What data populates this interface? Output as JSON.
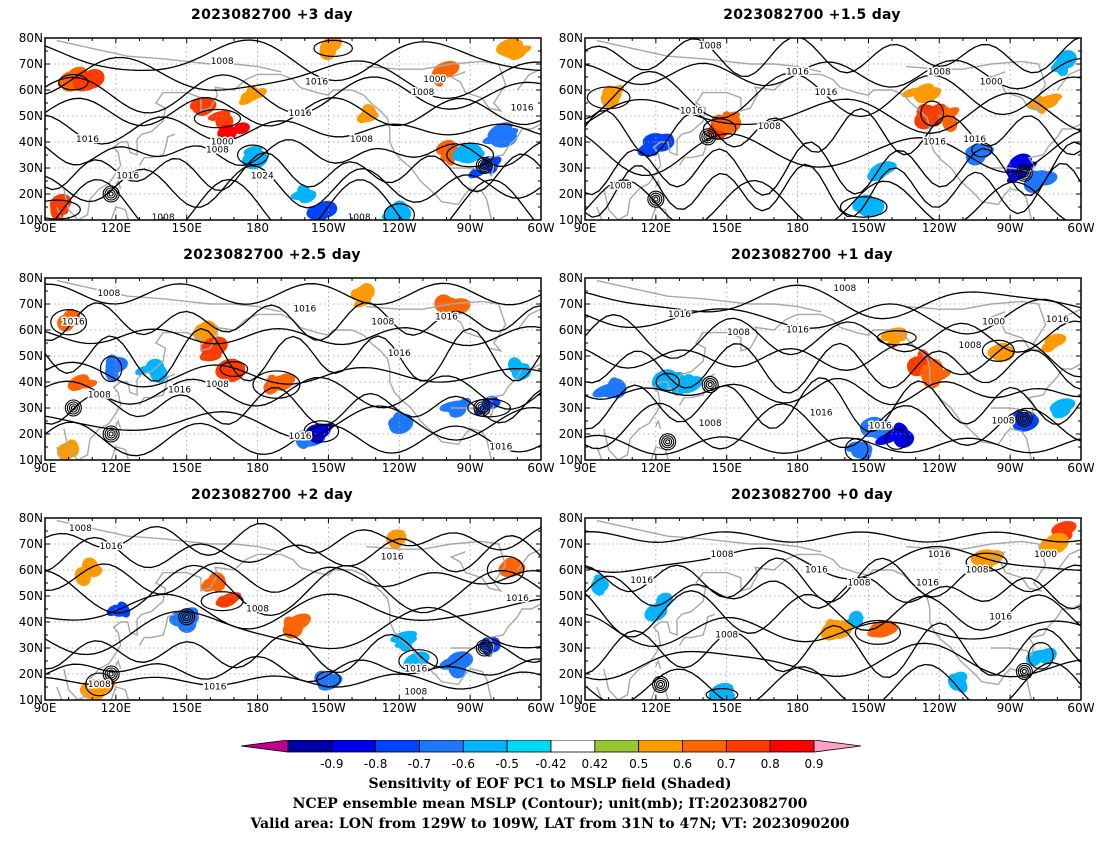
{
  "chart_data": [
    {
      "type": "heatmap",
      "title": "2023082700 +3 day",
      "x_ticks": [
        "90E",
        "120E",
        "150E",
        "180",
        "150W",
        "120W",
        "90W",
        "60W"
      ],
      "y_ticks": [
        "80N",
        "70N",
        "60N",
        "50N",
        "40N",
        "30N",
        "20N",
        "10N"
      ],
      "contour_labels": [
        {
          "text": "1008",
          "lon": 165,
          "lat": 71
        },
        {
          "text": "1016",
          "lon": 205,
          "lat": 63
        },
        {
          "text": "1000",
          "lon": 255,
          "lat": 64
        },
        {
          "text": "1008",
          "lon": 250,
          "lat": 59
        },
        {
          "text": "1016",
          "lon": 108,
          "lat": 41
        },
        {
          "text": "1000",
          "lon": 165,
          "lat": 40
        },
        {
          "text": "1008",
          "lon": 163,
          "lat": 37
        },
        {
          "text": "1016",
          "lon": 198,
          "lat": 51
        },
        {
          "text": "1016",
          "lon": 125,
          "lat": 27
        },
        {
          "text": "1008",
          "lon": 224,
          "lat": 41
        },
        {
          "text": "1024",
          "lon": 182,
          "lat": 27
        },
        {
          "text": "1008",
          "lon": 140,
          "lat": 11
        },
        {
          "text": "1008",
          "lon": 223,
          "lat": 11
        },
        {
          "text": "1016",
          "lon": 292,
          "lat": 53
        }
      ],
      "shaded": [
        {
          "lon": 102,
          "lat": 63,
          "v": 0.6
        },
        {
          "lon": 108,
          "lat": 63,
          "v": 0.7
        },
        {
          "lon": 155,
          "lat": 53,
          "v": 0.7
        },
        {
          "lon": 163,
          "lat": 49,
          "v": 0.7
        },
        {
          "lon": 170,
          "lat": 45,
          "v": 0.8
        },
        {
          "lon": 178,
          "lat": 58,
          "v": 0.5
        },
        {
          "lon": 212,
          "lat": 76,
          "v": 0.5
        },
        {
          "lon": 258,
          "lat": 66,
          "v": 0.6
        },
        {
          "lon": 290,
          "lat": 76,
          "v": 0.5
        },
        {
          "lon": 95,
          "lat": 14,
          "v": 0.7
        },
        {
          "lon": 260,
          "lat": 36,
          "v": 0.6
        },
        {
          "lon": 225,
          "lat": 49,
          "v": 0.5
        },
        {
          "lon": 178,
          "lat": 35,
          "v": -0.5
        },
        {
          "lon": 198,
          "lat": 18,
          "v": -0.5
        },
        {
          "lon": 208,
          "lat": 13,
          "v": -0.7
        },
        {
          "lon": 270,
          "lat": 35,
          "v": -0.5
        },
        {
          "lon": 282,
          "lat": 42,
          "v": -0.6
        },
        {
          "lon": 276,
          "lat": 30,
          "v": -0.7
        },
        {
          "lon": 240,
          "lat": 12,
          "v": -0.5
        }
      ],
      "lows": [
        {
          "lon": 276,
          "lat": 31
        },
        {
          "lon": 118,
          "lat": 20
        }
      ]
    },
    {
      "type": "heatmap",
      "title": "2023082700 +1.5 day",
      "x_ticks": [
        "90E",
        "120E",
        "150E",
        "180",
        "150W",
        "120W",
        "90W",
        "60W"
      ],
      "y_ticks": [
        "80N",
        "70N",
        "60N",
        "50N",
        "40N",
        "30N",
        "20N",
        "10N"
      ],
      "contour_labels": [
        {
          "text": "1008",
          "lon": 143,
          "lat": 77
        },
        {
          "text": "1016",
          "lon": 180,
          "lat": 67
        },
        {
          "text": "1008",
          "lon": 240,
          "lat": 67
        },
        {
          "text": "1000",
          "lon": 262,
          "lat": 63
        },
        {
          "text": "1016",
          "lon": 192,
          "lat": 59
        },
        {
          "text": "1016",
          "lon": 135,
          "lat": 52
        },
        {
          "text": "1008",
          "lon": 168,
          "lat": 46
        },
        {
          "text": "1016",
          "lon": 238,
          "lat": 40
        },
        {
          "text": "1016",
          "lon": 255,
          "lat": 41
        },
        {
          "text": "1008",
          "lon": 105,
          "lat": 23
        }
      ],
      "shaded": [
        {
          "lon": 147,
          "lat": 45,
          "v": 0.7
        },
        {
          "lon": 150,
          "lat": 48,
          "v": 0.6
        },
        {
          "lon": 232,
          "lat": 58,
          "v": 0.5
        },
        {
          "lon": 237,
          "lat": 51,
          "v": 0.7
        },
        {
          "lon": 244,
          "lat": 49,
          "v": 0.6
        },
        {
          "lon": 285,
          "lat": 56,
          "v": 0.5
        },
        {
          "lon": 100,
          "lat": 57,
          "v": 0.5
        },
        {
          "lon": 292,
          "lat": 69,
          "v": -0.5
        },
        {
          "lon": 120,
          "lat": 40,
          "v": -0.7
        },
        {
          "lon": 258,
          "lat": 37,
          "v": -0.6
        },
        {
          "lon": 275,
          "lat": 30,
          "v": -0.8
        },
        {
          "lon": 282,
          "lat": 26,
          "v": -0.6
        },
        {
          "lon": 208,
          "lat": 15,
          "v": -0.5
        },
        {
          "lon": 217,
          "lat": 28,
          "v": -0.5
        }
      ],
      "lows": [
        {
          "lon": 276,
          "lat": 28
        },
        {
          "lon": 142,
          "lat": 42
        },
        {
          "lon": 120,
          "lat": 18
        }
      ]
    },
    {
      "type": "heatmap",
      "title": "2023082700 +2.5 day",
      "x_ticks": [
        "90E",
        "120E",
        "150E",
        "180",
        "150W",
        "120W",
        "90W",
        "60W"
      ],
      "y_ticks": [
        "80N",
        "70N",
        "60N",
        "50N",
        "40N",
        "30N",
        "20N",
        "10N"
      ],
      "contour_labels": [
        {
          "text": "1008",
          "lon": 117,
          "lat": 74
        },
        {
          "text": "1016",
          "lon": 102,
          "lat": 63
        },
        {
          "text": "1016",
          "lon": 200,
          "lat": 68
        },
        {
          "text": "1008",
          "lon": 233,
          "lat": 63
        },
        {
          "text": "1016",
          "lon": 260,
          "lat": 65
        },
        {
          "text": "1016",
          "lon": 240,
          "lat": 51
        },
        {
          "text": "1008",
          "lon": 163,
          "lat": 39
        },
        {
          "text": "1016",
          "lon": 147,
          "lat": 37
        },
        {
          "text": "1008",
          "lon": 113,
          "lat": 35
        },
        {
          "text": "1016",
          "lon": 198,
          "lat": 19
        },
        {
          "text": "1016",
          "lon": 283,
          "lat": 15
        }
      ],
      "shaded": [
        {
          "lon": 100,
          "lat": 63,
          "v": 0.6
        },
        {
          "lon": 158,
          "lat": 58,
          "v": 0.5
        },
        {
          "lon": 163,
          "lat": 52,
          "v": 0.7
        },
        {
          "lon": 170,
          "lat": 45,
          "v": 0.7
        },
        {
          "lon": 225,
          "lat": 73,
          "v": 0.5
        },
        {
          "lon": 105,
          "lat": 40,
          "v": 0.6
        },
        {
          "lon": 188,
          "lat": 39,
          "v": 0.6
        },
        {
          "lon": 100,
          "lat": 14,
          "v": 0.5
        },
        {
          "lon": 262,
          "lat": 70,
          "v": 0.6
        },
        {
          "lon": 118,
          "lat": 45,
          "v": -0.6
        },
        {
          "lon": 135,
          "lat": 44,
          "v": -0.5
        },
        {
          "lon": 200,
          "lat": 18,
          "v": -0.6
        },
        {
          "lon": 207,
          "lat": 21,
          "v": -0.8
        },
        {
          "lon": 240,
          "lat": 25,
          "v": -0.6
        },
        {
          "lon": 265,
          "lat": 30,
          "v": -0.6
        },
        {
          "lon": 278,
          "lat": 30,
          "v": -0.7
        },
        {
          "lon": 290,
          "lat": 45,
          "v": -0.5
        }
      ],
      "lows": [
        {
          "lon": 275,
          "lat": 30
        },
        {
          "lon": 118,
          "lat": 20
        },
        {
          "lon": 102,
          "lat": 30
        }
      ]
    },
    {
      "type": "heatmap",
      "title": "2023082700 +1 day",
      "x_ticks": [
        "90E",
        "120E",
        "150E",
        "180",
        "150W",
        "120W",
        "90W",
        "60W"
      ],
      "y_ticks": [
        "80N",
        "70N",
        "60N",
        "50N",
        "40N",
        "30N",
        "20N",
        "10N"
      ],
      "contour_labels": [
        {
          "text": "1008",
          "lon": 200,
          "lat": 76
        },
        {
          "text": "1016",
          "lon": 130,
          "lat": 66
        },
        {
          "text": "1008",
          "lon": 155,
          "lat": 59
        },
        {
          "text": "1016",
          "lon": 180,
          "lat": 60
        },
        {
          "text": "1000",
          "lon": 263,
          "lat": 63
        },
        {
          "text": "1016",
          "lon": 290,
          "lat": 64
        },
        {
          "text": "1008",
          "lon": 253,
          "lat": 54
        },
        {
          "text": "1016",
          "lon": 190,
          "lat": 28
        },
        {
          "text": "1016",
          "lon": 215,
          "lat": 23
        },
        {
          "text": "1008",
          "lon": 143,
          "lat": 24
        },
        {
          "text": "1008",
          "lon": 267,
          "lat": 25
        }
      ],
      "shaded": [
        {
          "lon": 222,
          "lat": 57,
          "v": 0.5
        },
        {
          "lon": 232,
          "lat": 47,
          "v": 0.7
        },
        {
          "lon": 237,
          "lat": 43,
          "v": 0.6
        },
        {
          "lon": 265,
          "lat": 52,
          "v": 0.5
        },
        {
          "lon": 288,
          "lat": 54,
          "v": 0.5
        },
        {
          "lon": 100,
          "lat": 38,
          "v": -0.6
        },
        {
          "lon": 125,
          "lat": 40,
          "v": -0.5
        },
        {
          "lon": 132,
          "lat": 38,
          "v": -0.5
        },
        {
          "lon": 213,
          "lat": 22,
          "v": -0.6
        },
        {
          "lon": 222,
          "lat": 18,
          "v": -0.8
        },
        {
          "lon": 276,
          "lat": 26,
          "v": -0.7
        },
        {
          "lon": 290,
          "lat": 29,
          "v": -0.5
        },
        {
          "lon": 205,
          "lat": 14,
          "v": -0.6
        }
      ],
      "lows": [
        {
          "lon": 276,
          "lat": 26
        },
        {
          "lon": 143,
          "lat": 39
        },
        {
          "lon": 125,
          "lat": 17
        }
      ]
    },
    {
      "type": "heatmap",
      "title": "2023082700 +2 day",
      "x_ticks": [
        "90E",
        "120E",
        "150E",
        "180",
        "150W",
        "120W",
        "90W",
        "60W"
      ],
      "y_ticks": [
        "80N",
        "70N",
        "60N",
        "50N",
        "40N",
        "30N",
        "20N",
        "10N"
      ],
      "contour_labels": [
        {
          "text": "1008",
          "lon": 105,
          "lat": 76
        },
        {
          "text": "1016",
          "lon": 118,
          "lat": 69
        },
        {
          "text": "1016",
          "lon": 237,
          "lat": 65
        },
        {
          "text": "1008",
          "lon": 180,
          "lat": 45
        },
        {
          "text": "1016",
          "lon": 162,
          "lat": 15
        },
        {
          "text": "1008",
          "lon": 113,
          "lat": 16
        },
        {
          "text": "1008",
          "lon": 247,
          "lat": 13
        },
        {
          "text": "1016",
          "lon": 290,
          "lat": 49
        },
        {
          "text": "1016",
          "lon": 247,
          "lat": 22
        }
      ],
      "shaded": [
        {
          "lon": 165,
          "lat": 48,
          "v": 0.7
        },
        {
          "lon": 160,
          "lat": 53,
          "v": 0.6
        },
        {
          "lon": 240,
          "lat": 73,
          "v": 0.5
        },
        {
          "lon": 285,
          "lat": 60,
          "v": 0.6
        },
        {
          "lon": 195,
          "lat": 39,
          "v": 0.6
        },
        {
          "lon": 108,
          "lat": 60,
          "v": 0.5
        },
        {
          "lon": 113,
          "lat": 16,
          "v": 0.5
        },
        {
          "lon": 122,
          "lat": 44,
          "v": -0.7
        },
        {
          "lon": 150,
          "lat": 41,
          "v": -0.6
        },
        {
          "lon": 210,
          "lat": 18,
          "v": -0.6
        },
        {
          "lon": 278,
          "lat": 30,
          "v": -0.7
        },
        {
          "lon": 265,
          "lat": 24,
          "v": -0.6
        },
        {
          "lon": 248,
          "lat": 25,
          "v": -0.5
        },
        {
          "lon": 240,
          "lat": 33,
          "v": -0.5
        }
      ],
      "lows": [
        {
          "lon": 276,
          "lat": 30
        },
        {
          "lon": 118,
          "lat": 20
        },
        {
          "lon": 150,
          "lat": 42
        }
      ]
    },
    {
      "type": "heatmap",
      "title": "2023082700 +0 day",
      "x_ticks": [
        "90E",
        "120E",
        "150E",
        "180",
        "150W",
        "120W",
        "90W",
        "60W"
      ],
      "y_ticks": [
        "80N",
        "70N",
        "60N",
        "50N",
        "40N",
        "30N",
        "20N",
        "10N"
      ],
      "contour_labels": [
        {
          "text": "1008",
          "lon": 148,
          "lat": 66
        },
        {
          "text": "1016",
          "lon": 240,
          "lat": 66
        },
        {
          "text": "1000",
          "lon": 285,
          "lat": 66
        },
        {
          "text": "1016",
          "lon": 188,
          "lat": 60
        },
        {
          "text": "1008",
          "lon": 206,
          "lat": 55
        },
        {
          "text": "1008",
          "lon": 256,
          "lat": 60
        },
        {
          "text": "1016",
          "lon": 114,
          "lat": 56
        },
        {
          "text": "1016",
          "lon": 235,
          "lat": 55
        },
        {
          "text": "1016",
          "lon": 266,
          "lat": 42
        },
        {
          "text": "1008",
          "lon": 150,
          "lat": 35
        }
      ],
      "shaded": [
        {
          "lon": 214,
          "lat": 36,
          "v": 0.6
        },
        {
          "lon": 292,
          "lat": 74,
          "v": 0.7
        },
        {
          "lon": 287,
          "lat": 70,
          "v": 0.5
        },
        {
          "lon": 260,
          "lat": 63,
          "v": 0.5
        },
        {
          "lon": 122,
          "lat": 46,
          "v": -0.5
        },
        {
          "lon": 95,
          "lat": 54,
          "v": -0.5
        },
        {
          "lon": 148,
          "lat": 12,
          "v": -0.5
        },
        {
          "lon": 205,
          "lat": 40,
          "v": -0.5
        },
        {
          "lon": 195,
          "lat": 38,
          "v": 0.5
        },
        {
          "lon": 283,
          "lat": 27,
          "v": -0.5
        },
        {
          "lon": 250,
          "lat": 17,
          "v": -0.5
        }
      ],
      "lows": [
        {
          "lon": 276,
          "lat": 21
        },
        {
          "lon": 122,
          "lat": 16
        }
      ]
    }
  ],
  "colorbar": {
    "labels": [
      "-0.9",
      "-0.8",
      "-0.7",
      "-0.6",
      "-0.5",
      "-0.42",
      "0.42",
      "0.5",
      "0.6",
      "0.7",
      "0.8",
      "0.9"
    ],
    "colors": [
      "#c0008c",
      "#0000a8",
      "#0000e8",
      "#0044ff",
      "#1e78ff",
      "#00b4ff",
      "#00d8f8",
      "#ffffff",
      "#96c832",
      "#ff9b00",
      "#ff6400",
      "#ff3c00",
      "#ff0000",
      "#ffa0c8"
    ]
  },
  "caption": {
    "line1": "Sensitivity of EOF PC1 to MSLP field (Shaded)",
    "line2": "NCEP ensemble mean MSLP (Contour); unit(mb); IT:2023082700",
    "line3": "Valid area: LON from 129W to 109W, LAT from 31N to 47N; VT: 2023090200"
  }
}
